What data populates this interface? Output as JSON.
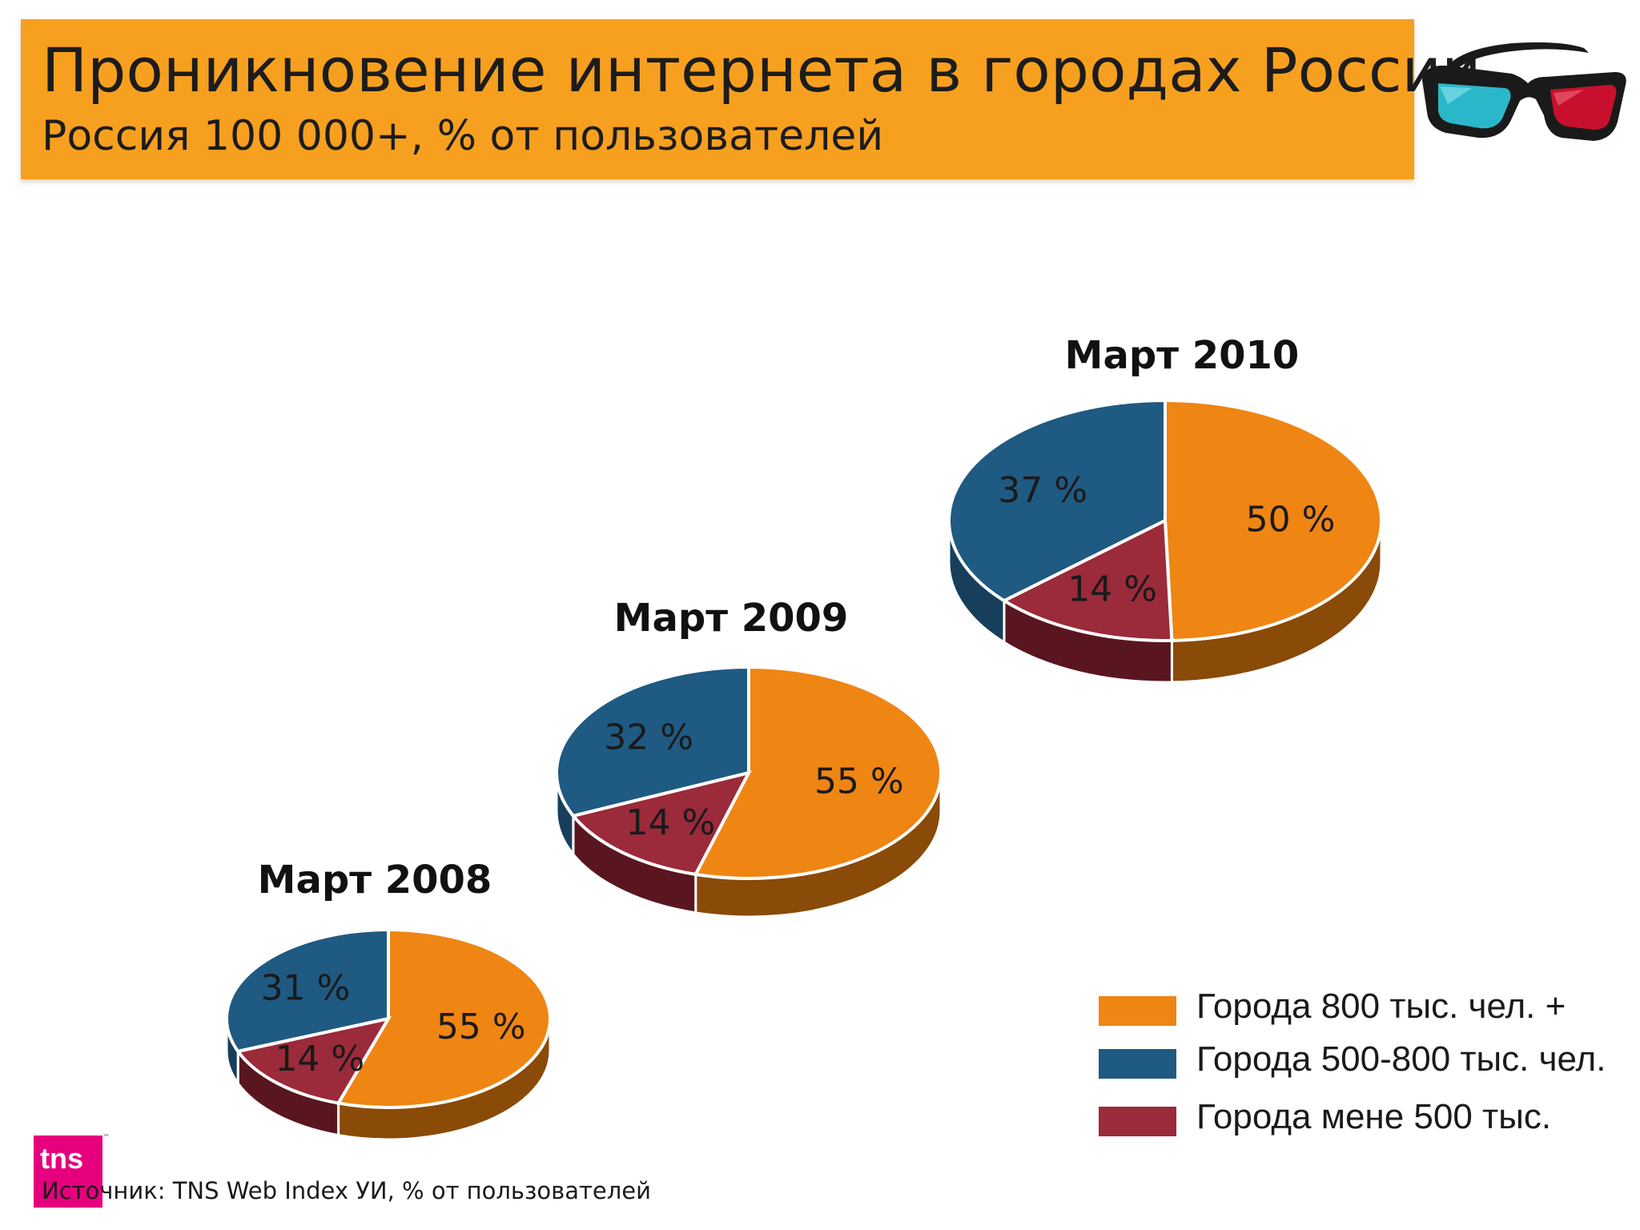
{
  "header": {
    "title": "Проникновение интернета в городах России",
    "subtitle": "Россия 100 000+, % от пользователей"
  },
  "colors": {
    "header_band": "#f7a01f",
    "orange": "#ef8513",
    "blue": "#1f5a82",
    "red": "#9b2a3a"
  },
  "chart_data": {
    "type": "pie",
    "slice_order": [
      "Города 800 тыс. чел. +",
      "Города мене 500 тыс.",
      "Города 500-800 тыс. чел."
    ],
    "pies": [
      {
        "title": "Март 2008",
        "labels": [
          "55 %",
          "14 %",
          "31 %"
        ],
        "values": [
          55,
          14,
          31
        ]
      },
      {
        "title": "Март 2009",
        "labels": [
          "55 %",
          "14 %",
          "32 %"
        ],
        "values": [
          55,
          14,
          32
        ]
      },
      {
        "title": "Март 2010",
        "labels": [
          "50 %",
          "14 %",
          "37 %"
        ],
        "values": [
          50,
          14,
          37
        ]
      }
    ],
    "legend_position": "bottom-right"
  },
  "legend": {
    "items": [
      {
        "label": "Города 800 тыс. чел. +",
        "color": "#ef8513"
      },
      {
        "label": "Города 500-800 тыс. чел.",
        "color": "#1f5a82"
      },
      {
        "label": "Города мене 500 тыс.",
        "color": "#9b2a3a"
      }
    ]
  },
  "footer": {
    "logo_text": "tns",
    "source": "Источник: TNS Web Index УИ, % от пользователей"
  },
  "icons": {
    "header_image": "anaglyph-3d-glasses-icon"
  }
}
